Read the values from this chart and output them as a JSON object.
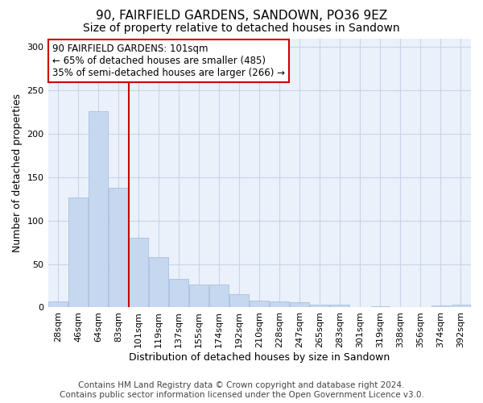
{
  "title": "90, FAIRFIELD GARDENS, SANDOWN, PO36 9EZ",
  "subtitle": "Size of property relative to detached houses in Sandown",
  "xlabel": "Distribution of detached houses by size in Sandown",
  "ylabel": "Number of detached properties",
  "categories": [
    "28sqm",
    "46sqm",
    "64sqm",
    "83sqm",
    "101sqm",
    "119sqm",
    "137sqm",
    "155sqm",
    "174sqm",
    "192sqm",
    "210sqm",
    "228sqm",
    "247sqm",
    "265sqm",
    "283sqm",
    "301sqm",
    "319sqm",
    "338sqm",
    "356sqm",
    "374sqm",
    "392sqm"
  ],
  "values": [
    7,
    127,
    226,
    138,
    80,
    58,
    33,
    26,
    26,
    15,
    8,
    7,
    6,
    3,
    3,
    0,
    1,
    0,
    0,
    2,
    3
  ],
  "bar_color": "#c5d8f0",
  "bar_edge_color": "#a0b8d8",
  "vline_x_index": 4,
  "vline_color": "#cc0000",
  "annotation_line1": "90 FAIRFIELD GARDENS: 101sqm",
  "annotation_line2": "← 65% of detached houses are smaller (485)",
  "annotation_line3": "35% of semi-detached houses are larger (266) →",
  "annotation_box_color": "#ffffff",
  "annotation_box_edge_color": "#cc0000",
  "ylim": [
    0,
    310
  ],
  "yticks": [
    0,
    50,
    100,
    150,
    200,
    250,
    300
  ],
  "footer_line1": "Contains HM Land Registry data © Crown copyright and database right 2024.",
  "footer_line2": "Contains public sector information licensed under the Open Government Licence v3.0.",
  "background_color": "#ffffff",
  "plot_bg_color": "#eaf1fb",
  "grid_color": "#c8d4e8",
  "title_fontsize": 11,
  "subtitle_fontsize": 10,
  "axis_label_fontsize": 9,
  "tick_fontsize": 8,
  "annotation_fontsize": 8.5,
  "footer_fontsize": 7.5
}
